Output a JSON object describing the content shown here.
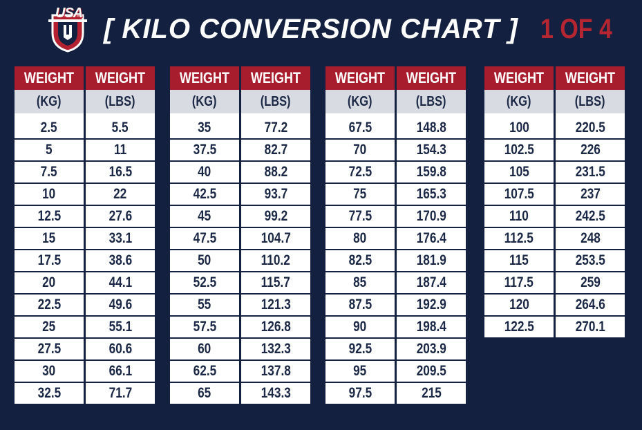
{
  "header": {
    "logo_text": "USA",
    "title": "[ KILO CONVERSION CHART ]",
    "page_indicator": "1 OF 4"
  },
  "colors": {
    "background": "#13203f",
    "header_red": "#a81d2d",
    "subheader_gray": "#d8dbe2",
    "text_navy": "#1a2745",
    "accent_red": "#b52632"
  },
  "columns_header": {
    "weight": "WEIGHT",
    "kg": "(KG)",
    "lbs": "(LBS)"
  },
  "tables": [
    {
      "rows": [
        [
          "2.5",
          "5.5"
        ],
        [
          "5",
          "11"
        ],
        [
          "7.5",
          "16.5"
        ],
        [
          "10",
          "22"
        ],
        [
          "12.5",
          "27.6"
        ],
        [
          "15",
          "33.1"
        ],
        [
          "17.5",
          "38.6"
        ],
        [
          "20",
          "44.1"
        ],
        [
          "22.5",
          "49.6"
        ],
        [
          "25",
          "55.1"
        ],
        [
          "27.5",
          "60.6"
        ],
        [
          "30",
          "66.1"
        ],
        [
          "32.5",
          "71.7"
        ]
      ]
    },
    {
      "rows": [
        [
          "35",
          "77.2"
        ],
        [
          "37.5",
          "82.7"
        ],
        [
          "40",
          "88.2"
        ],
        [
          "42.5",
          "93.7"
        ],
        [
          "45",
          "99.2"
        ],
        [
          "47.5",
          "104.7"
        ],
        [
          "50",
          "110.2"
        ],
        [
          "52.5",
          "115.7"
        ],
        [
          "55",
          "121.3"
        ],
        [
          "57.5",
          "126.8"
        ],
        [
          "60",
          "132.3"
        ],
        [
          "62.5",
          "137.8"
        ],
        [
          "65",
          "143.3"
        ]
      ]
    },
    {
      "rows": [
        [
          "67.5",
          "148.8"
        ],
        [
          "70",
          "154.3"
        ],
        [
          "72.5",
          "159.8"
        ],
        [
          "75",
          "165.3"
        ],
        [
          "77.5",
          "170.9"
        ],
        [
          "80",
          "176.4"
        ],
        [
          "82.5",
          "181.9"
        ],
        [
          "85",
          "187.4"
        ],
        [
          "87.5",
          "192.9"
        ],
        [
          "90",
          "198.4"
        ],
        [
          "92.5",
          "203.9"
        ],
        [
          "95",
          "209.5"
        ],
        [
          "97.5",
          "215"
        ]
      ]
    },
    {
      "rows": [
        [
          "100",
          "220.5"
        ],
        [
          "102.5",
          "226"
        ],
        [
          "105",
          "231.5"
        ],
        [
          "107.5",
          "237"
        ],
        [
          "110",
          "242.5"
        ],
        [
          "112.5",
          "248"
        ],
        [
          "115",
          "253.5"
        ],
        [
          "117.5",
          "259"
        ],
        [
          "120",
          "264.6"
        ],
        [
          "122.5",
          "270.1"
        ]
      ]
    }
  ]
}
